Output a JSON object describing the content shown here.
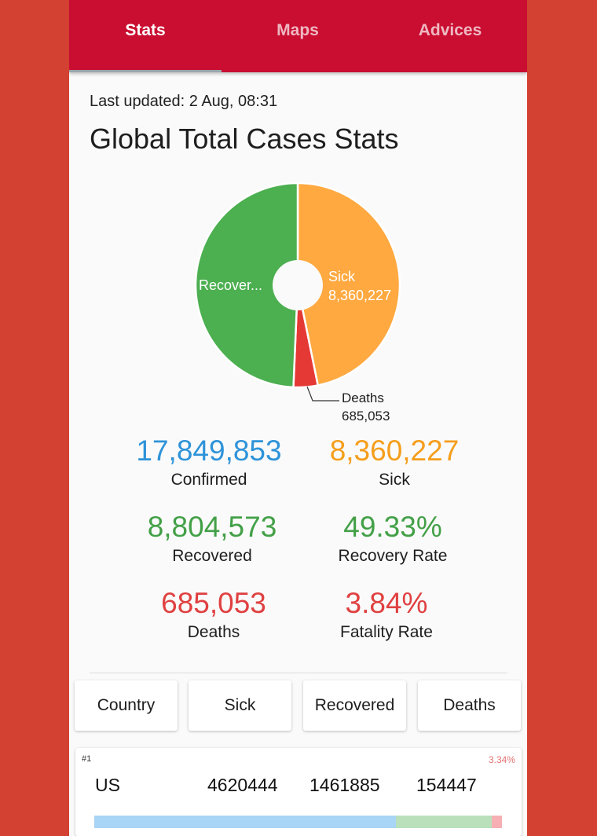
{
  "tabs": [
    {
      "label": "Stats",
      "active": true
    },
    {
      "label": "Maps",
      "active": false
    },
    {
      "label": "Advices",
      "active": false
    }
  ],
  "last_updated": "Last updated: 2 Aug, 08:31",
  "title": "Global Total Cases Stats",
  "chart_data": {
    "type": "pie",
    "donut": true,
    "slices": [
      {
        "label": "Sick",
        "value": 8360227,
        "value_label": "8,360,227",
        "color": "#ffa940"
      },
      {
        "label": "Deaths",
        "value": 685053,
        "value_label": "685,053",
        "color": "#e53935"
      },
      {
        "label": "Recovered",
        "value": 8804573,
        "display_label": "Recover...",
        "color": "#4caf50"
      }
    ]
  },
  "stats": {
    "confirmed": {
      "value": "17,849,853",
      "label": "Confirmed",
      "color": "#2e93d9"
    },
    "sick": {
      "value": "8,360,227",
      "label": "Sick",
      "color": "#f59e1c"
    },
    "recovered": {
      "value": "8,804,573",
      "label": "Recovered",
      "color": "#43a047"
    },
    "recovery_rate": {
      "value": "49.33%",
      "label": "Recovery Rate",
      "color": "#43a047"
    },
    "deaths": {
      "value": "685,053",
      "label": "Deaths",
      "color": "#e04040"
    },
    "fatality_rate": {
      "value": "3.84%",
      "label": "Fatality Rate",
      "color": "#e04040"
    }
  },
  "sort_buttons": [
    "Country",
    "Sick",
    "Recovered",
    "Deaths"
  ],
  "countries": [
    {
      "rank": "#1",
      "fatality_rate": "3.34%",
      "name": "US",
      "sick": "4620444",
      "recovered": "1461885",
      "deaths": "154447",
      "bar": {
        "sick_fraction": 0.74,
        "recovered_fraction": 0.235,
        "deaths_fraction": 0.025
      },
      "bar_colors": {
        "sick": "#a8d4f5",
        "recovered": "#b9e0bb",
        "deaths": "#f6b0b3"
      }
    }
  ]
}
